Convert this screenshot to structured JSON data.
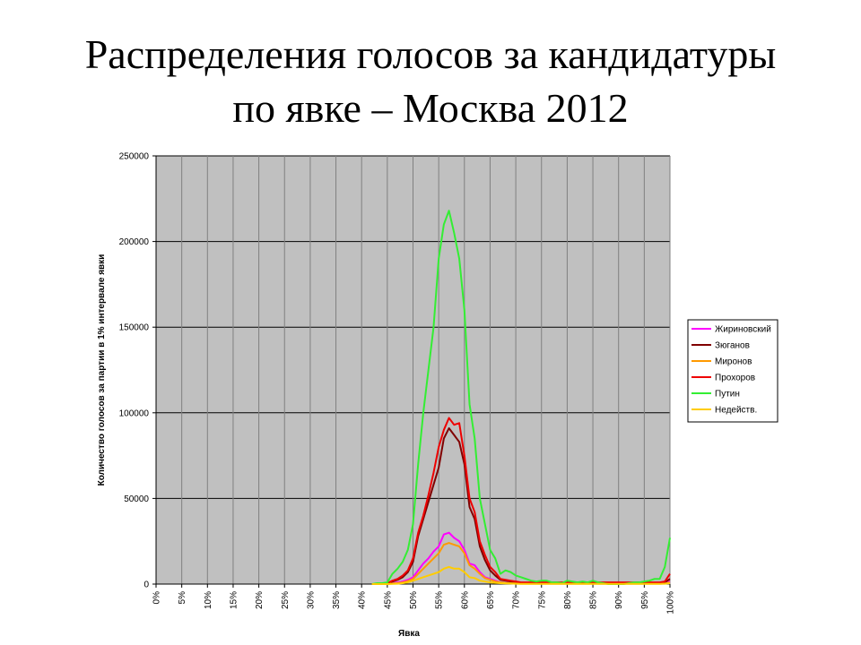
{
  "chart_data": {
    "type": "line",
    "title": [
      "Распределения голосов за кандидатуры",
      "по явке – Москва 2012"
    ],
    "xlabel": "Явка",
    "ylabel": "Количество голосов за партии в 1% интервале явки",
    "x": [
      42,
      43,
      44,
      45,
      46,
      47,
      48,
      49,
      50,
      51,
      52,
      53,
      54,
      55,
      56,
      57,
      58,
      59,
      60,
      61,
      62,
      63,
      64,
      65,
      66,
      67,
      68,
      69,
      70,
      71,
      72,
      73,
      74,
      75,
      76,
      77,
      78,
      79,
      80,
      81,
      82,
      83,
      84,
      85,
      86,
      87,
      88,
      89,
      90,
      91,
      92,
      93,
      94,
      95,
      96,
      97,
      98,
      99,
      100
    ],
    "series": [
      {
        "name": "Жириновский",
        "color": "#ff00ff",
        "values": [
          0,
          0,
          0,
          200,
          500,
          1000,
          1500,
          2500,
          4000,
          8000,
          12000,
          15000,
          19000,
          22000,
          29000,
          30000,
          27000,
          25000,
          20000,
          12000,
          11000,
          7000,
          4000,
          3000,
          2000,
          1000,
          800,
          600,
          500,
          300,
          300,
          300,
          300,
          300,
          300,
          300,
          300,
          300,
          300,
          300,
          300,
          300,
          300,
          300,
          300,
          300,
          300,
          300,
          300,
          300,
          300,
          300,
          300,
          300,
          300,
          300,
          300,
          500,
          1500
        ]
      },
      {
        "name": "Зюганов",
        "color": "#800000",
        "values": [
          0,
          0,
          0,
          500,
          1500,
          2500,
          4000,
          7000,
          13000,
          28000,
          38000,
          48000,
          58000,
          68000,
          85000,
          91000,
          87000,
          83000,
          70000,
          45000,
          38000,
          22000,
          14000,
          8000,
          5000,
          2500,
          2000,
          1500,
          1000,
          700,
          700,
          700,
          700,
          700,
          700,
          700,
          700,
          700,
          700,
          700,
          700,
          700,
          700,
          700,
          700,
          700,
          700,
          700,
          700,
          700,
          700,
          700,
          700,
          700,
          700,
          700,
          700,
          1000,
          3000
        ]
      },
      {
        "name": "Миронов",
        "color": "#ff9900",
        "values": [
          0,
          0,
          0,
          100,
          300,
          600,
          1000,
          1800,
          3000,
          6000,
          9000,
          12000,
          15000,
          18000,
          23000,
          24000,
          23000,
          22000,
          18000,
          11000,
          9000,
          6000,
          3500,
          2500,
          1500,
          1000,
          700,
          500,
          400,
          200,
          200,
          200,
          200,
          200,
          200,
          200,
          200,
          200,
          200,
          200,
          200,
          200,
          200,
          200,
          200,
          200,
          200,
          200,
          200,
          200,
          200,
          200,
          200,
          200,
          200,
          200,
          200,
          300,
          1000
        ]
      },
      {
        "name": "Прохоров",
        "color": "#ee0000",
        "values": [
          0,
          0,
          0,
          500,
          2000,
          3000,
          5000,
          8000,
          15000,
          30000,
          40000,
          52000,
          65000,
          80000,
          90000,
          97000,
          93000,
          94000,
          75000,
          50000,
          42000,
          25000,
          17000,
          10000,
          7000,
          3000,
          2500,
          2000,
          1500,
          1000,
          1000,
          1000,
          1000,
          1000,
          1000,
          1000,
          1000,
          1000,
          1000,
          1000,
          1000,
          1000,
          1000,
          1000,
          1000,
          1000,
          1000,
          1000,
          1000,
          1000,
          1000,
          1000,
          1000,
          1000,
          1000,
          1000,
          1000,
          1500,
          6000
        ]
      },
      {
        "name": "Путин",
        "color": "#33ee33",
        "values": [
          0,
          500,
          500,
          1000,
          6000,
          9000,
          13000,
          20000,
          35000,
          70000,
          100000,
          125000,
          150000,
          190000,
          210000,
          218000,
          205000,
          190000,
          160000,
          105000,
          85000,
          50000,
          35000,
          20000,
          15000,
          6000,
          8000,
          7000,
          5000,
          4000,
          3000,
          2000,
          1500,
          2000,
          2000,
          1000,
          1000,
          500,
          2000,
          1500,
          1000,
          1500,
          1000,
          2000,
          1000,
          500,
          0,
          0,
          0,
          0,
          500,
          1000,
          1000,
          1500,
          2000,
          3000,
          3000,
          10000,
          27000
        ]
      },
      {
        "name": "Недейств.",
        "color": "#ffcc00",
        "values": [
          0,
          0,
          0,
          0,
          100,
          200,
          500,
          1000,
          2000,
          3000,
          4000,
          5000,
          6000,
          7000,
          9000,
          10000,
          9000,
          9000,
          7000,
          4000,
          3500,
          2000,
          1500,
          1000,
          700,
          500,
          400,
          300,
          200,
          100,
          100,
          100,
          100,
          100,
          100,
          100,
          100,
          100,
          100,
          100,
          100,
          100,
          100,
          100,
          100,
          100,
          100,
          100,
          100,
          100,
          100,
          100,
          100,
          100,
          100,
          100,
          100,
          200,
          500
        ]
      }
    ],
    "xlim": [
      0,
      100
    ],
    "xticks": [
      {
        "value": 0,
        "label": "0%"
      },
      {
        "value": 5,
        "label": "5%"
      },
      {
        "value": 10,
        "label": "10%"
      },
      {
        "value": 15,
        "label": "15%"
      },
      {
        "value": 20,
        "label": "20%"
      },
      {
        "value": 25,
        "label": "25%"
      },
      {
        "value": 30,
        "label": "30%"
      },
      {
        "value": 35,
        "label": "35%"
      },
      {
        "value": 40,
        "label": "40%"
      },
      {
        "value": 45,
        "label": "45%"
      },
      {
        "value": 50,
        "label": "50%"
      },
      {
        "value": 55,
        "label": "55%"
      },
      {
        "value": 60,
        "label": "60%"
      },
      {
        "value": 65,
        "label": "65%"
      },
      {
        "value": 70,
        "label": "70%"
      },
      {
        "value": 75,
        "label": "75%"
      },
      {
        "value": 80,
        "label": "80%"
      },
      {
        "value": 85,
        "label": "85%"
      },
      {
        "value": 90,
        "label": "90%"
      },
      {
        "value": 95,
        "label": "95%"
      },
      {
        "value": 100,
        "label": "100%"
      }
    ],
    "ylim": [
      0,
      250000
    ],
    "yticks": [
      0,
      50000,
      100000,
      150000,
      200000,
      250000
    ],
    "grid": true,
    "legend": "right"
  }
}
